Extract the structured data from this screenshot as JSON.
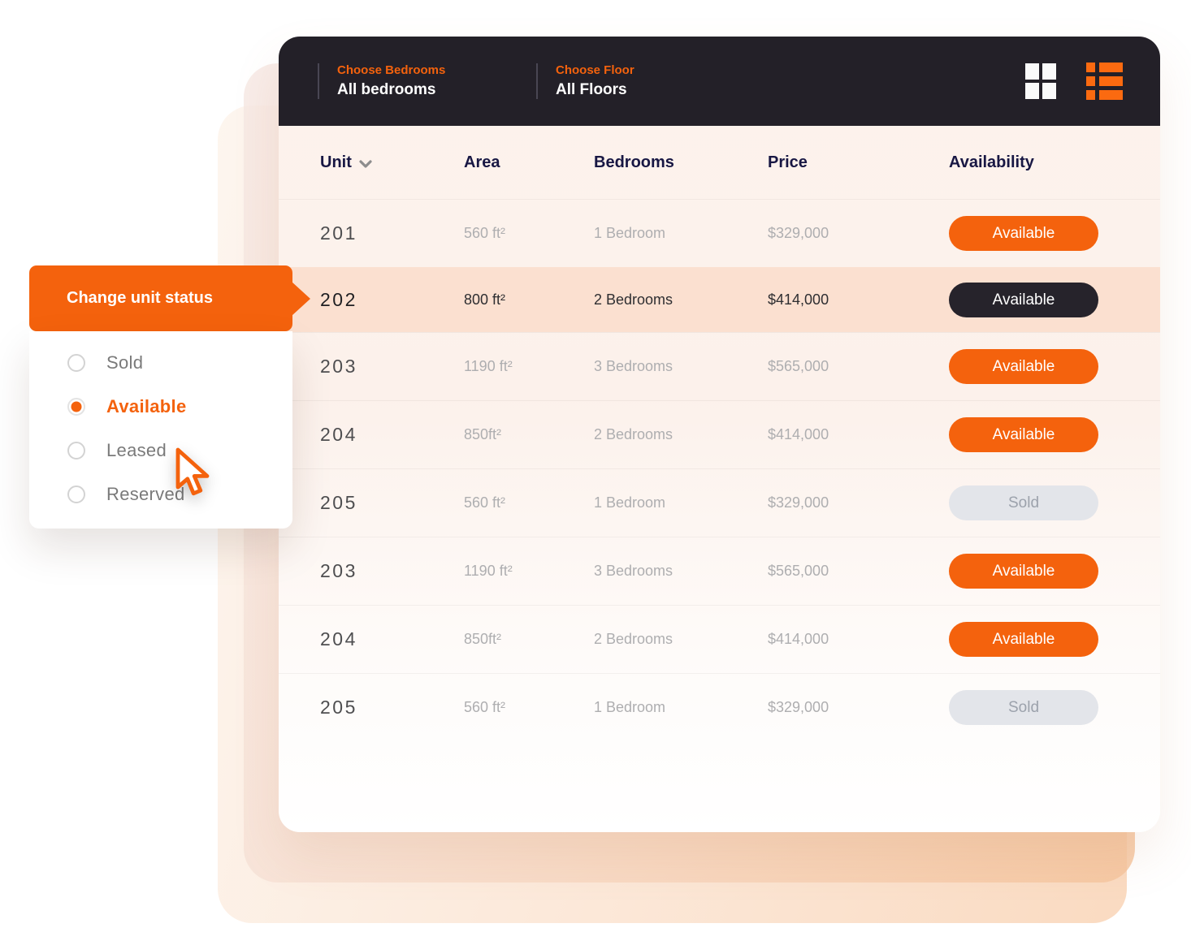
{
  "colors": {
    "accent": "#F4620D",
    "icon_accent": "#FB6A10",
    "header_bg": "#232028",
    "highlight_row_bg": "#FBE0D0",
    "sold_pill_bg": "#E3E5EA",
    "column_header_text": "#181743"
  },
  "header": {
    "filters": [
      {
        "label": "Choose Bedrooms",
        "value": "All bedrooms"
      },
      {
        "label": "Choose Floor",
        "value": "All Floors"
      }
    ],
    "icons": {
      "grid": "grid-view-icon",
      "list": "list-view-icon"
    }
  },
  "table": {
    "columns": [
      "Unit",
      "Area",
      "Bedrooms",
      "Price",
      "Availability"
    ],
    "sort_icon": "sort-chevron-down-icon",
    "rows": [
      {
        "unit": "201",
        "area": "560 ft²",
        "bedrooms": "1 Bedroom",
        "price": "$329,000",
        "status": "Available",
        "variant": "orange",
        "highlighted": false
      },
      {
        "unit": "202",
        "area": "800 ft²",
        "bedrooms": "2 Bedrooms",
        "price": "$414,000",
        "status": "Available",
        "variant": "dark",
        "highlighted": true
      },
      {
        "unit": "203",
        "area": "1190 ft²",
        "bedrooms": "3 Bedrooms",
        "price": "$565,000",
        "status": "Available",
        "variant": "orange",
        "highlighted": false
      },
      {
        "unit": "204",
        "area": "850ft²",
        "bedrooms": "2 Bedrooms",
        "price": "$414,000",
        "status": "Available",
        "variant": "orange",
        "highlighted": false
      },
      {
        "unit": "205",
        "area": "560 ft²",
        "bedrooms": "1 Bedroom",
        "price": "$329,000",
        "status": "Sold",
        "variant": "gray",
        "highlighted": false
      },
      {
        "unit": "203",
        "area": "1190 ft²",
        "bedrooms": "3 Bedrooms",
        "price": "$565,000",
        "status": "Available",
        "variant": "orange",
        "highlighted": false
      },
      {
        "unit": "204",
        "area": "850ft²",
        "bedrooms": "2 Bedrooms",
        "price": "$414,000",
        "status": "Available",
        "variant": "orange",
        "highlighted": false
      },
      {
        "unit": "205",
        "area": "560 ft²",
        "bedrooms": "1 Bedroom",
        "price": "$329,000",
        "status": "Sold",
        "variant": "gray",
        "highlighted": false
      }
    ]
  },
  "popup": {
    "title": "Change unit status",
    "options": [
      {
        "label": "Sold",
        "selected": false
      },
      {
        "label": "Available",
        "selected": true
      },
      {
        "label": "Leased",
        "selected": false
      },
      {
        "label": "Reserved",
        "selected": false
      }
    ]
  }
}
